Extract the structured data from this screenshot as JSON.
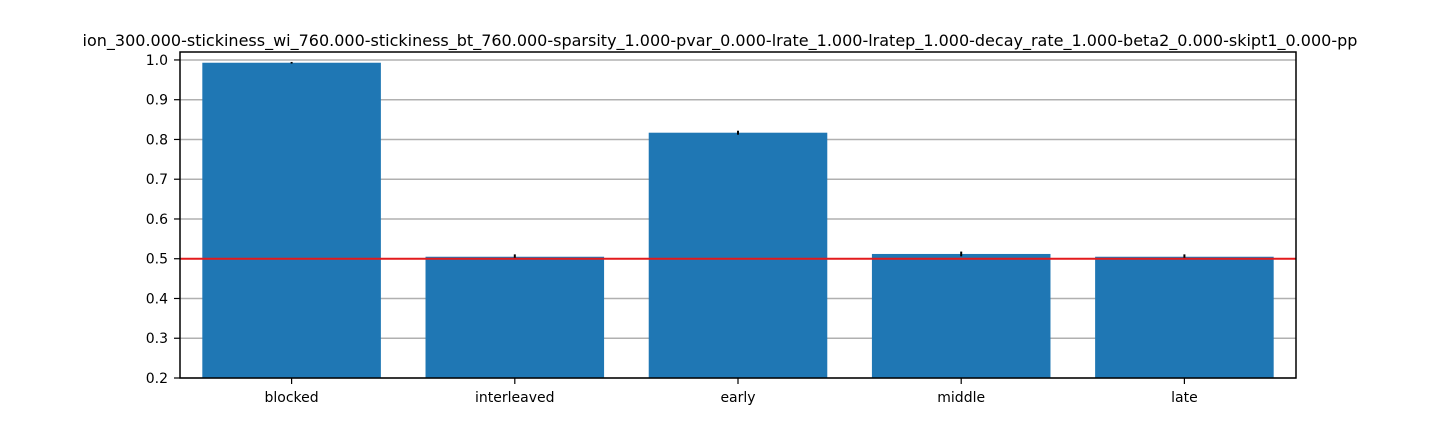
{
  "chart_data": {
    "type": "bar",
    "title": "ion_300.000-stickiness_wi_760.000-stickiness_bt_760.000-sparsity_1.000-pvar_0.000-lrate_1.000-lratep_1.000-decay_rate_1.000-beta2_0.000-skipt1_0.000-pp",
    "categories": [
      "blocked",
      "interleaved",
      "early",
      "middle",
      "late"
    ],
    "values": [
      0.993,
      0.505,
      0.817,
      0.512,
      0.505
    ],
    "errors": [
      0.002,
      0.006,
      0.005,
      0.006,
      0.006
    ],
    "ylim": [
      0.2,
      1.02
    ],
    "yticks": [
      0.2,
      0.3,
      0.4,
      0.5,
      0.6,
      0.7,
      0.8,
      0.9,
      1.0
    ],
    "ytick_labels": [
      "0.2",
      "0.3",
      "0.4",
      "0.5",
      "0.6",
      "0.7",
      "0.8",
      "0.9",
      "1.0"
    ],
    "grid": "y",
    "reference_line": 0.5,
    "xlabel": "",
    "ylabel": "",
    "colors": {
      "bar": "#1f77b4",
      "reference": "#e31a1c",
      "grid": "#b0b0b0",
      "error": "#000000"
    }
  }
}
